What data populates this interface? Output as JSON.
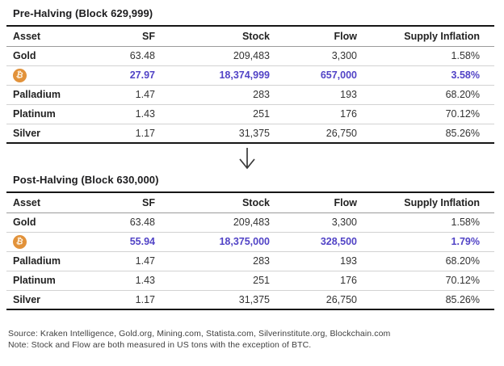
{
  "colors": {
    "highlight_purple": "#5143c6",
    "bitcoin_orange": "#e2923a",
    "border_dark": "#161616"
  },
  "arrow": {
    "name": "down-arrow",
    "glyph": "↓"
  },
  "chart_data": [
    {
      "type": "table",
      "title": "Pre-Halving (Block 629,999)",
      "columns": [
        "Asset",
        "SF",
        "Stock",
        "Flow",
        "Supply Inflation"
      ],
      "rows": [
        {
          "asset": "Gold",
          "sf": "63.48",
          "stock": "209,483",
          "flow": "3,300",
          "supply_inflation": "1.58%",
          "highlight": false
        },
        {
          "asset": "",
          "icon": "bitcoin-icon",
          "icon_glyph": "₿",
          "sf": "27.97",
          "stock": "18,374,999",
          "flow": "657,000",
          "supply_inflation": "3.58%",
          "highlight": true
        },
        {
          "asset": "Palladium",
          "sf": "1.47",
          "stock": "283",
          "flow": "193",
          "supply_inflation": "68.20%",
          "highlight": false
        },
        {
          "asset": "Platinum",
          "sf": "1.43",
          "stock": "251",
          "flow": "176",
          "supply_inflation": "70.12%",
          "highlight": false
        },
        {
          "asset": "Silver",
          "sf": "1.17",
          "stock": "31,375",
          "flow": "26,750",
          "supply_inflation": "85.26%",
          "highlight": false
        }
      ]
    },
    {
      "type": "table",
      "title": "Post-Halving (Block 630,000)",
      "columns": [
        "Asset",
        "SF",
        "Stock",
        "Flow",
        "Supply Inflation"
      ],
      "rows": [
        {
          "asset": "Gold",
          "sf": "63.48",
          "stock": "209,483",
          "flow": "3,300",
          "supply_inflation": "1.58%",
          "highlight": false
        },
        {
          "asset": "",
          "icon": "bitcoin-icon",
          "icon_glyph": "₿",
          "sf": "55.94",
          "stock": "18,375,000",
          "flow": "328,500",
          "supply_inflation": "1.79%",
          "highlight": true
        },
        {
          "asset": "Palladium",
          "sf": "1.47",
          "stock": "283",
          "flow": "193",
          "supply_inflation": "68.20%",
          "highlight": false
        },
        {
          "asset": "Platinum",
          "sf": "1.43",
          "stock": "251",
          "flow": "176",
          "supply_inflation": "70.12%",
          "highlight": false
        },
        {
          "asset": "Silver",
          "sf": "1.17",
          "stock": "31,375",
          "flow": "26,750",
          "supply_inflation": "85.26%",
          "highlight": false
        }
      ]
    }
  ],
  "footer": {
    "source": "Source: Kraken Intelligence, Gold.org, Mining.com, Statista.com, Silverinstitute.org, Blockchain.com",
    "note": "Note: Stock and Flow are both measured in US tons with the exception of BTC."
  }
}
